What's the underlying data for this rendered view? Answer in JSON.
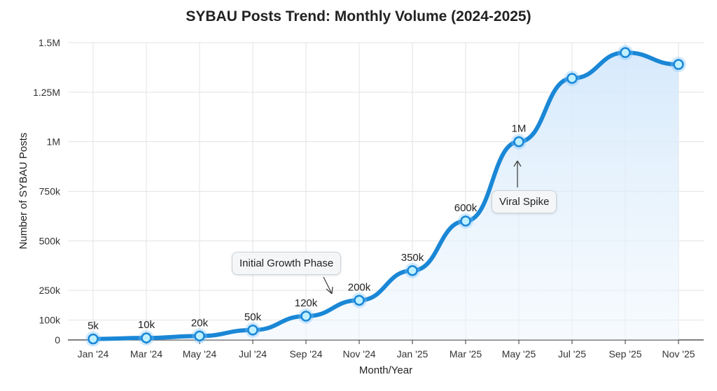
{
  "chart_data": {
    "type": "area",
    "title": "SYBAU Posts Trend: Monthly Volume (2024-2025)",
    "xlabel": "Month/Year",
    "ylabel": "Number of SYBAU Posts",
    "categories": [
      "Jan '24",
      "Mar '24",
      "May '24",
      "Jul '24",
      "Sep '24",
      "Nov '24",
      "Jan '25",
      "Mar '25",
      "May '25",
      "Jul '25",
      "Sep '25",
      "Nov '25"
    ],
    "values": [
      5000,
      10000,
      20000,
      50000,
      120000,
      200000,
      350000,
      600000,
      1000000,
      1320000,
      1450000,
      1390000
    ],
    "data_labels": [
      "5k",
      "10k",
      "20k",
      "50k",
      "120k",
      "200k",
      "350k",
      "600k",
      "1M",
      "",
      "",
      ""
    ],
    "ylim": [
      0,
      1500000
    ],
    "yticks": [
      0,
      100000,
      250000,
      500000,
      750000,
      1000000,
      1250000,
      1500000
    ],
    "ytick_labels": [
      "0",
      "100k",
      "250k",
      "500k",
      "750k",
      "1M",
      "1.25M",
      "1.5M"
    ],
    "grid": true,
    "line_color": "#1a87d6",
    "fill_color": "#dcecfb",
    "annotations": [
      {
        "text": "Initial Growth Phase",
        "points_to": "Oct '24"
      },
      {
        "text": "Viral Spike",
        "points_to": "May '25"
      }
    ]
  }
}
